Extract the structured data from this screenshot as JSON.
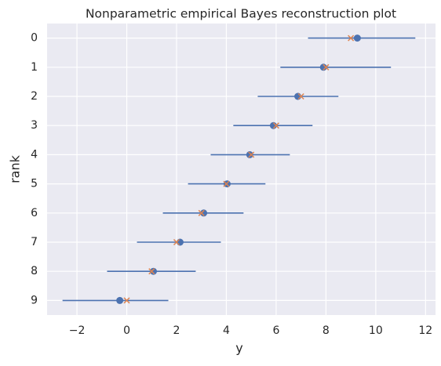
{
  "chart_data": {
    "type": "errorbar",
    "title": "Nonparametric empirical Bayes reconstruction plot",
    "xlabel": "y",
    "ylabel": "rank",
    "categories": [
      0,
      1,
      2,
      3,
      4,
      5,
      6,
      7,
      8,
      9
    ],
    "estimates": [
      9.26,
      7.9,
      6.87,
      5.89,
      4.94,
      4.03,
      3.09,
      2.14,
      1.07,
      -0.28
    ],
    "true_values": [
      9.0,
      8.0,
      7.0,
      6.0,
      5.0,
      4.0,
      3.0,
      2.0,
      1.0,
      0.0
    ],
    "lower": [
      7.28,
      6.17,
      5.26,
      4.28,
      3.37,
      2.46,
      1.45,
      0.41,
      -0.79,
      -2.58
    ],
    "upper": [
      11.59,
      10.61,
      8.5,
      7.46,
      6.55,
      5.57,
      4.69,
      3.78,
      2.77,
      1.67
    ],
    "color": "#4c72b0",
    "marker_color": "#dd8452",
    "xlim": [
      -3.2,
      12.4
    ],
    "xticks": [
      {
        "value": -2,
        "label": "−2"
      },
      0,
      2,
      4,
      6,
      8,
      10,
      12
    ],
    "ylim": [
      9.5,
      -0.5
    ],
    "yticks": [
      0,
      1,
      2,
      3,
      4,
      5,
      6,
      7,
      8,
      9
    ],
    "grid": true
  }
}
